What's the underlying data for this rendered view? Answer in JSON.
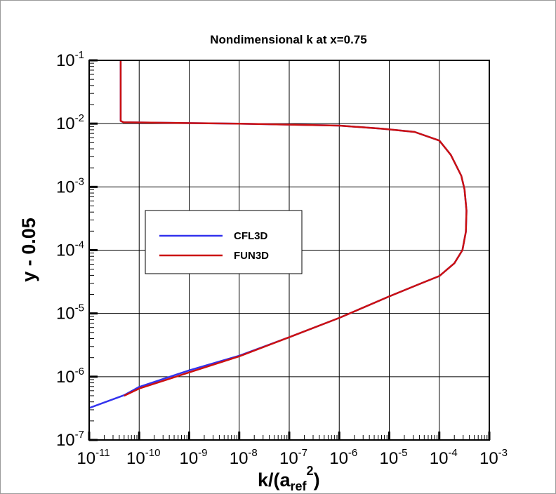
{
  "chart_data": {
    "type": "line",
    "title": "Nondimensional k at x=0.75",
    "xlabel": {
      "main": "k/(a",
      "sub": "ref",
      "sup": "2",
      "close": ")"
    },
    "ylabel": "y - 0.05",
    "xscale": "log",
    "yscale": "log",
    "xlim": [
      1e-11,
      0.001
    ],
    "ylim": [
      1e-07,
      0.1
    ],
    "grid": true,
    "legend_placement": "center-left",
    "xticks": [
      {
        "base": "10",
        "exp": "-11"
      },
      {
        "base": "10",
        "exp": "-10"
      },
      {
        "base": "10",
        "exp": "-9"
      },
      {
        "base": "10",
        "exp": "-8"
      },
      {
        "base": "10",
        "exp": "-7"
      },
      {
        "base": "10",
        "exp": "-6"
      },
      {
        "base": "10",
        "exp": "-5"
      },
      {
        "base": "10",
        "exp": "-4"
      },
      {
        "base": "10",
        "exp": "-3"
      }
    ],
    "yticks": [
      {
        "base": "10",
        "exp": "-7"
      },
      {
        "base": "10",
        "exp": "-6"
      },
      {
        "base": "10",
        "exp": "-5"
      },
      {
        "base": "10",
        "exp": "-4"
      },
      {
        "base": "10",
        "exp": "-3"
      },
      {
        "base": "10",
        "exp": "-2"
      },
      {
        "base": "10",
        "exp": "-1"
      }
    ],
    "series": [
      {
        "name": "CFL3D",
        "color": "#3333ee",
        "points": [
          [
            1e-11,
            3.2e-07
          ],
          [
            5e-11,
            5.1e-07
          ],
          [
            1e-10,
            6.9e-07
          ],
          [
            1e-09,
            1.26e-06
          ],
          [
            1e-08,
            2.15e-06
          ],
          [
            1e-07,
            4.2e-06
          ],
          [
            1e-06,
            8.5e-06
          ],
          [
            1e-05,
            1.86e-05
          ],
          [
            4.4e-05,
            3e-05
          ],
          [
            0.0001,
            3.9e-05
          ],
          [
            0.0002,
            6.2e-05
          ],
          [
            0.00029,
            0.0001
          ],
          [
            0.00034,
            0.000195
          ],
          [
            0.00035,
            0.00042
          ],
          [
            0.00032,
            0.00091
          ],
          [
            0.000275,
            0.0015
          ],
          [
            0.00017,
            0.0032
          ],
          [
            0.0001,
            0.0054
          ],
          [
            3.2e-05,
            0.0074
          ],
          [
            7.4e-06,
            0.0083
          ],
          [
            1e-06,
            0.0093
          ],
          [
            1e-08,
            0.01
          ],
          [
            4.9e-11,
            0.0105
          ],
          [
            4.27e-11,
            0.011
          ],
          [
            4.27e-11,
            0.1
          ]
        ]
      },
      {
        "name": "FUN3D",
        "color": "#cc1111",
        "points": [
          [
            5e-11,
            5e-07
          ],
          [
            1e-10,
            6.5e-07
          ],
          [
            1e-09,
            1.17e-06
          ],
          [
            1e-08,
            2.1e-06
          ],
          [
            1e-07,
            4.2e-06
          ],
          [
            1e-06,
            8.5e-06
          ],
          [
            1e-05,
            1.86e-05
          ],
          [
            4.4e-05,
            3e-05
          ],
          [
            0.0001,
            3.9e-05
          ],
          [
            0.0002,
            6.2e-05
          ],
          [
            0.00029,
            0.0001
          ],
          [
            0.00034,
            0.000195
          ],
          [
            0.00035,
            0.00042
          ],
          [
            0.00032,
            0.00091
          ],
          [
            0.000275,
            0.0015
          ],
          [
            0.00017,
            0.0032
          ],
          [
            0.0001,
            0.0054
          ],
          [
            3.2e-05,
            0.0074
          ],
          [
            7.4e-06,
            0.0083
          ],
          [
            1e-06,
            0.0093
          ],
          [
            1e-08,
            0.01
          ],
          [
            4.9e-11,
            0.0105
          ],
          [
            4.27e-11,
            0.011
          ],
          [
            4.27e-11,
            0.1
          ]
        ]
      }
    ]
  }
}
